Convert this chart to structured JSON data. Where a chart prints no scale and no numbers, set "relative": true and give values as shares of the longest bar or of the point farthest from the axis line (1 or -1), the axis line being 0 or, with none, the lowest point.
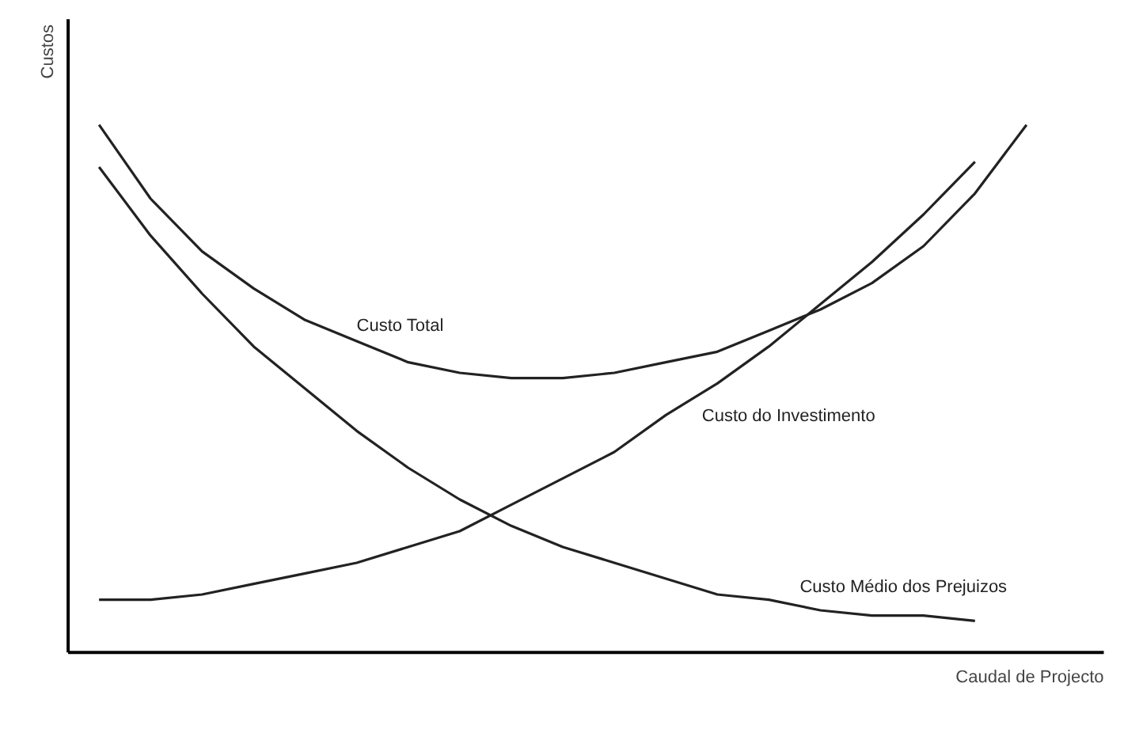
{
  "chart_data": {
    "type": "line",
    "relative": true,
    "xlabel": "Caudal de Projecto",
    "ylabel": "Custos",
    "categories": [
      null,
      null,
      null,
      null,
      null,
      null,
      null,
      null,
      null,
      null,
      null,
      null,
      null,
      null,
      null,
      null,
      null,
      null,
      null
    ],
    "series": [
      {
        "name": "Custo Total",
        "color": "#222222",
        "values": [
          1,
          0.86,
          0.76,
          0.69,
          0.63,
          0.59,
          0.55,
          0.53,
          0.52,
          0.52,
          0.53,
          0.55,
          0.57,
          0.61,
          0.65,
          0.7,
          0.77,
          0.87,
          1
        ]
      },
      {
        "name": "Custo do Investimento",
        "color": "#222222",
        "values": [
          0.1,
          0.1,
          0.11,
          0.13,
          0.15,
          0.17,
          0.2,
          0.23,
          0.28,
          0.33,
          0.38,
          0.45,
          0.51,
          0.58,
          0.66,
          0.74,
          0.83,
          0.93,
          null
        ]
      },
      {
        "name": "Custo Médio dos Prejuizos",
        "color": "#222222",
        "values": [
          0.92,
          0.79,
          0.68,
          0.58,
          0.5,
          0.42,
          0.35,
          0.29,
          0.24,
          0.2,
          0.17,
          0.14,
          0.11,
          0.1,
          0.08,
          0.07,
          0.07,
          0.06,
          null
        ]
      }
    ],
    "grid": false,
    "marker": "none",
    "line_style": "solid"
  }
}
